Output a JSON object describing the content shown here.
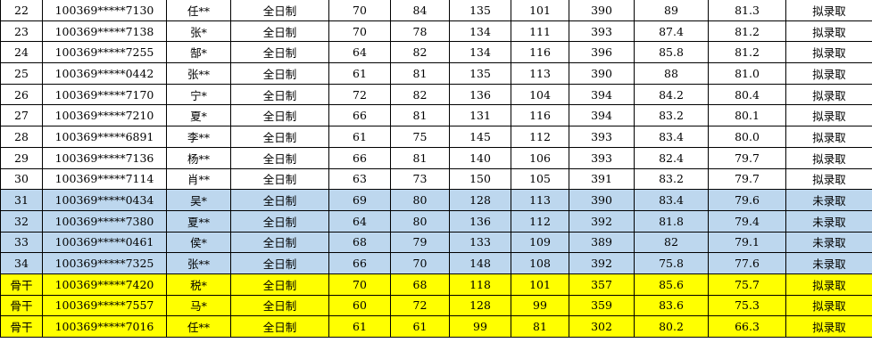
{
  "table": {
    "rows": [
      {
        "fill": "#ffffff",
        "cells": [
          "22",
          "100369*****7130",
          "任**",
          "全日制",
          "70",
          "84",
          "135",
          "101",
          "390",
          "89",
          "81.3",
          "拟录取"
        ]
      },
      {
        "fill": "#ffffff",
        "cells": [
          "23",
          "100369*****7138",
          "张*",
          "全日制",
          "70",
          "78",
          "134",
          "111",
          "393",
          "87.4",
          "81.2",
          "拟录取"
        ]
      },
      {
        "fill": "#ffffff",
        "cells": [
          "24",
          "100369*****7255",
          "郜*",
          "全日制",
          "64",
          "82",
          "134",
          "116",
          "396",
          "85.8",
          "81.2",
          "拟录取"
        ]
      },
      {
        "fill": "#ffffff",
        "cells": [
          "25",
          "100369*****0442",
          "张**",
          "全日制",
          "61",
          "81",
          "135",
          "113",
          "390",
          "88",
          "81.0",
          "拟录取"
        ]
      },
      {
        "fill": "#ffffff",
        "cells": [
          "26",
          "100369*****7170",
          "宁*",
          "全日制",
          "72",
          "82",
          "136",
          "104",
          "394",
          "84.2",
          "80.4",
          "拟录取"
        ]
      },
      {
        "fill": "#ffffff",
        "cells": [
          "27",
          "100369*****7210",
          "夏*",
          "全日制",
          "66",
          "81",
          "131",
          "116",
          "394",
          "83.2",
          "80.1",
          "拟录取"
        ]
      },
      {
        "fill": "#ffffff",
        "cells": [
          "28",
          "100369*****6891",
          "李**",
          "全日制",
          "61",
          "75",
          "145",
          "112",
          "393",
          "83.4",
          "80.0",
          "拟录取"
        ]
      },
      {
        "fill": "#ffffff",
        "cells": [
          "29",
          "100369*****7136",
          "杨**",
          "全日制",
          "66",
          "81",
          "140",
          "106",
          "393",
          "82.4",
          "79.7",
          "拟录取"
        ]
      },
      {
        "fill": "#ffffff",
        "cells": [
          "30",
          "100369*****7114",
          "肖**",
          "全日制",
          "63",
          "73",
          "150",
          "105",
          "391",
          "83.2",
          "79.7",
          "拟录取"
        ]
      },
      {
        "fill": "#bdd7ee",
        "cells": [
          "31",
          "100369*****0434",
          "吴*",
          "全日制",
          "69",
          "80",
          "128",
          "113",
          "390",
          "83.4",
          "79.6",
          "未录取"
        ]
      },
      {
        "fill": "#bdd7ee",
        "cells": [
          "32",
          "100369*****7380",
          "夏**",
          "全日制",
          "64",
          "80",
          "136",
          "112",
          "392",
          "81.8",
          "79.4",
          "未录取"
        ]
      },
      {
        "fill": "#bdd7ee",
        "cells": [
          "33",
          "100369*****0461",
          "侯*",
          "全日制",
          "68",
          "79",
          "133",
          "109",
          "389",
          "82",
          "79.1",
          "未录取"
        ]
      },
      {
        "fill": "#bdd7ee",
        "cells": [
          "34",
          "100369*****7325",
          "张**",
          "全日制",
          "66",
          "70",
          "148",
          "108",
          "392",
          "75.8",
          "77.6",
          "未录取"
        ]
      },
      {
        "fill": "#ffff00",
        "cells": [
          "骨干",
          "100369*****7420",
          "税*",
          "全日制",
          "70",
          "68",
          "118",
          "101",
          "357",
          "85.6",
          "75.7",
          "拟录取"
        ]
      },
      {
        "fill": "#ffff00",
        "cells": [
          "骨干",
          "100369*****7557",
          "马*",
          "全日制",
          "60",
          "72",
          "128",
          "99",
          "359",
          "83.6",
          "75.3",
          "拟录取"
        ]
      },
      {
        "fill": "#ffff00",
        "cells": [
          "骨干",
          "100369*****7016",
          "任**",
          "全日制",
          "61",
          "61",
          "99",
          "81",
          "302",
          "80.2",
          "66.3",
          "拟录取"
        ]
      }
    ]
  }
}
